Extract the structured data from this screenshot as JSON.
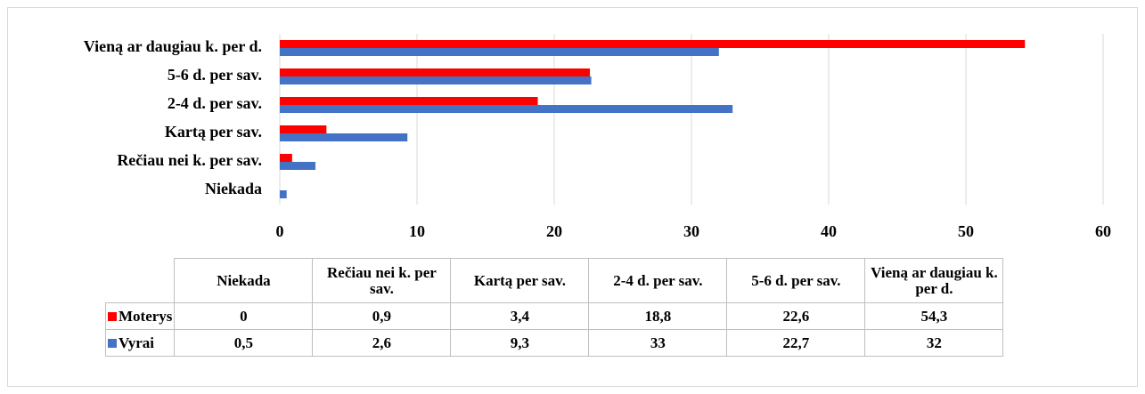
{
  "chart_data": {
    "type": "bar",
    "orientation": "horizontal",
    "categories": [
      "Niekada",
      "Rečiau nei k. per sav.",
      "Kartą per sav.",
      "2-4 d. per sav.",
      "5-6 d. per sav.",
      "Vieną ar daugiau k. per d."
    ],
    "series": [
      {
        "name": "Moterys",
        "color": "#ff0000",
        "values": [
          0,
          0.9,
          3.4,
          18.8,
          22.6,
          54.3
        ],
        "value_labels": [
          "0",
          "0,9",
          "3,4",
          "18,8",
          "22,6",
          "54,3"
        ]
      },
      {
        "name": "Vyrai",
        "color": "#4472c4",
        "values": [
          0.5,
          2.6,
          9.3,
          33,
          22.7,
          32
        ],
        "value_labels": [
          "0,5",
          "2,6",
          "9,3",
          "33",
          "22,7",
          "32"
        ]
      }
    ],
    "xlim": [
      0,
      60
    ],
    "xticks": [
      0,
      10,
      20,
      30,
      40,
      50,
      60
    ],
    "grid": true,
    "data_table": true
  }
}
